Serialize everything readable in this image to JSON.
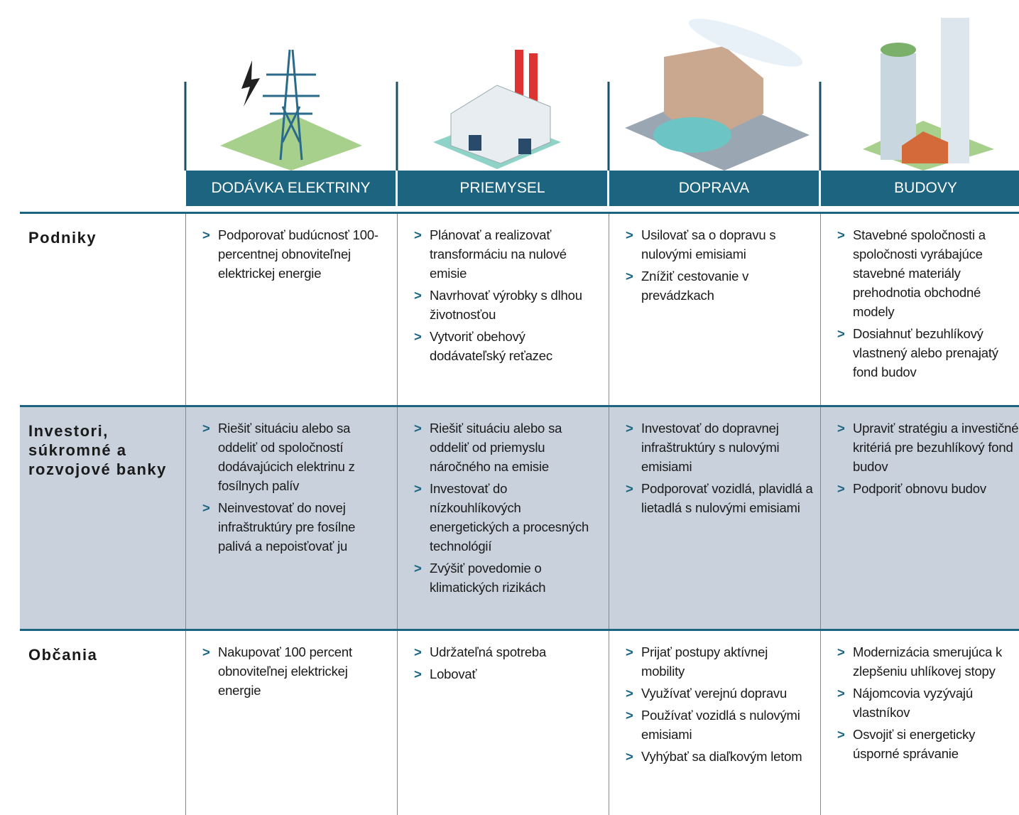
{
  "table": {
    "columns": [
      "DODÁVKA  ELEKTRINY",
      "PRIEMYSEL",
      "DOPRAVA",
      "BUDOVY"
    ],
    "rows": [
      {
        "label": "Podniky",
        "cells": [
          [
            "Podporovať budúcnosť 100-percentnej obnoviteľnej elektrickej energie"
          ],
          [
            "Plánovať a realizovať transformáciu na nulové emisie",
            "Navrhovať výrobky s dlhou životnosťou",
            "Vytvoriť obehový dodávateľský reťazec"
          ],
          [
            "Usilovať sa o dopravu s nulovými emisiami",
            "Znížiť cestovanie v prevádzkach"
          ],
          [
            "Stavebné spoločnosti a spoločnosti vyrábajúce stavebné materiály prehodnotia obchodné modely",
            "Dosiahnuť bezuhlíkový vlastnený alebo prenajatý fond budov"
          ]
        ]
      },
      {
        "label": "Investori, súkromné a rozvojové banky",
        "cells": [
          [
            "Riešiť situáciu alebo sa oddeliť od spoločností dodávajúcich elektrinu z fosílnych palív",
            "Neinvestovať do novej infraštruktúry pre fosílne palivá a nepoisťovať ju"
          ],
          [
            "Riešiť situáciu alebo sa oddeliť od priemyslu náročného na emisie",
            "Investovať do nízkouhlíkových energetických a procesných technológií",
            "Zvýšiť povedomie o klimatických rizikách"
          ],
          [
            "Investovať do dopravnej infraštruktúry s nulovými emisiami",
            "Podporovať vozidlá, plavidlá a lietadlá s nulovými emisiami"
          ],
          [
            "Upraviť stratégiu a investičné kritériá pre bezuhlíkový fond budov",
            "Podporiť obnovu budov"
          ]
        ]
      },
      {
        "label": "Občania",
        "cells": [
          [
            "Nakupovať 100 percent obnoviteľnej elektrickej energie"
          ],
          [
            "Udržateľná spotreba",
            "Lobovať"
          ],
          [
            "Prijať postupy aktívnej mobility",
            "Využívať verejnú dopravu",
            "Používať vozidlá s nulovými emisiami",
            "Vyhýbať sa diaľkovým letom"
          ],
          [
            "Modernizácia smerujúca k zlepšeniu uhlíkovej stopy",
            "Nájomcovia vyzývajú vlastníkov",
            "Osvojiť si energeticky úsporné správanie"
          ]
        ]
      }
    ]
  }
}
